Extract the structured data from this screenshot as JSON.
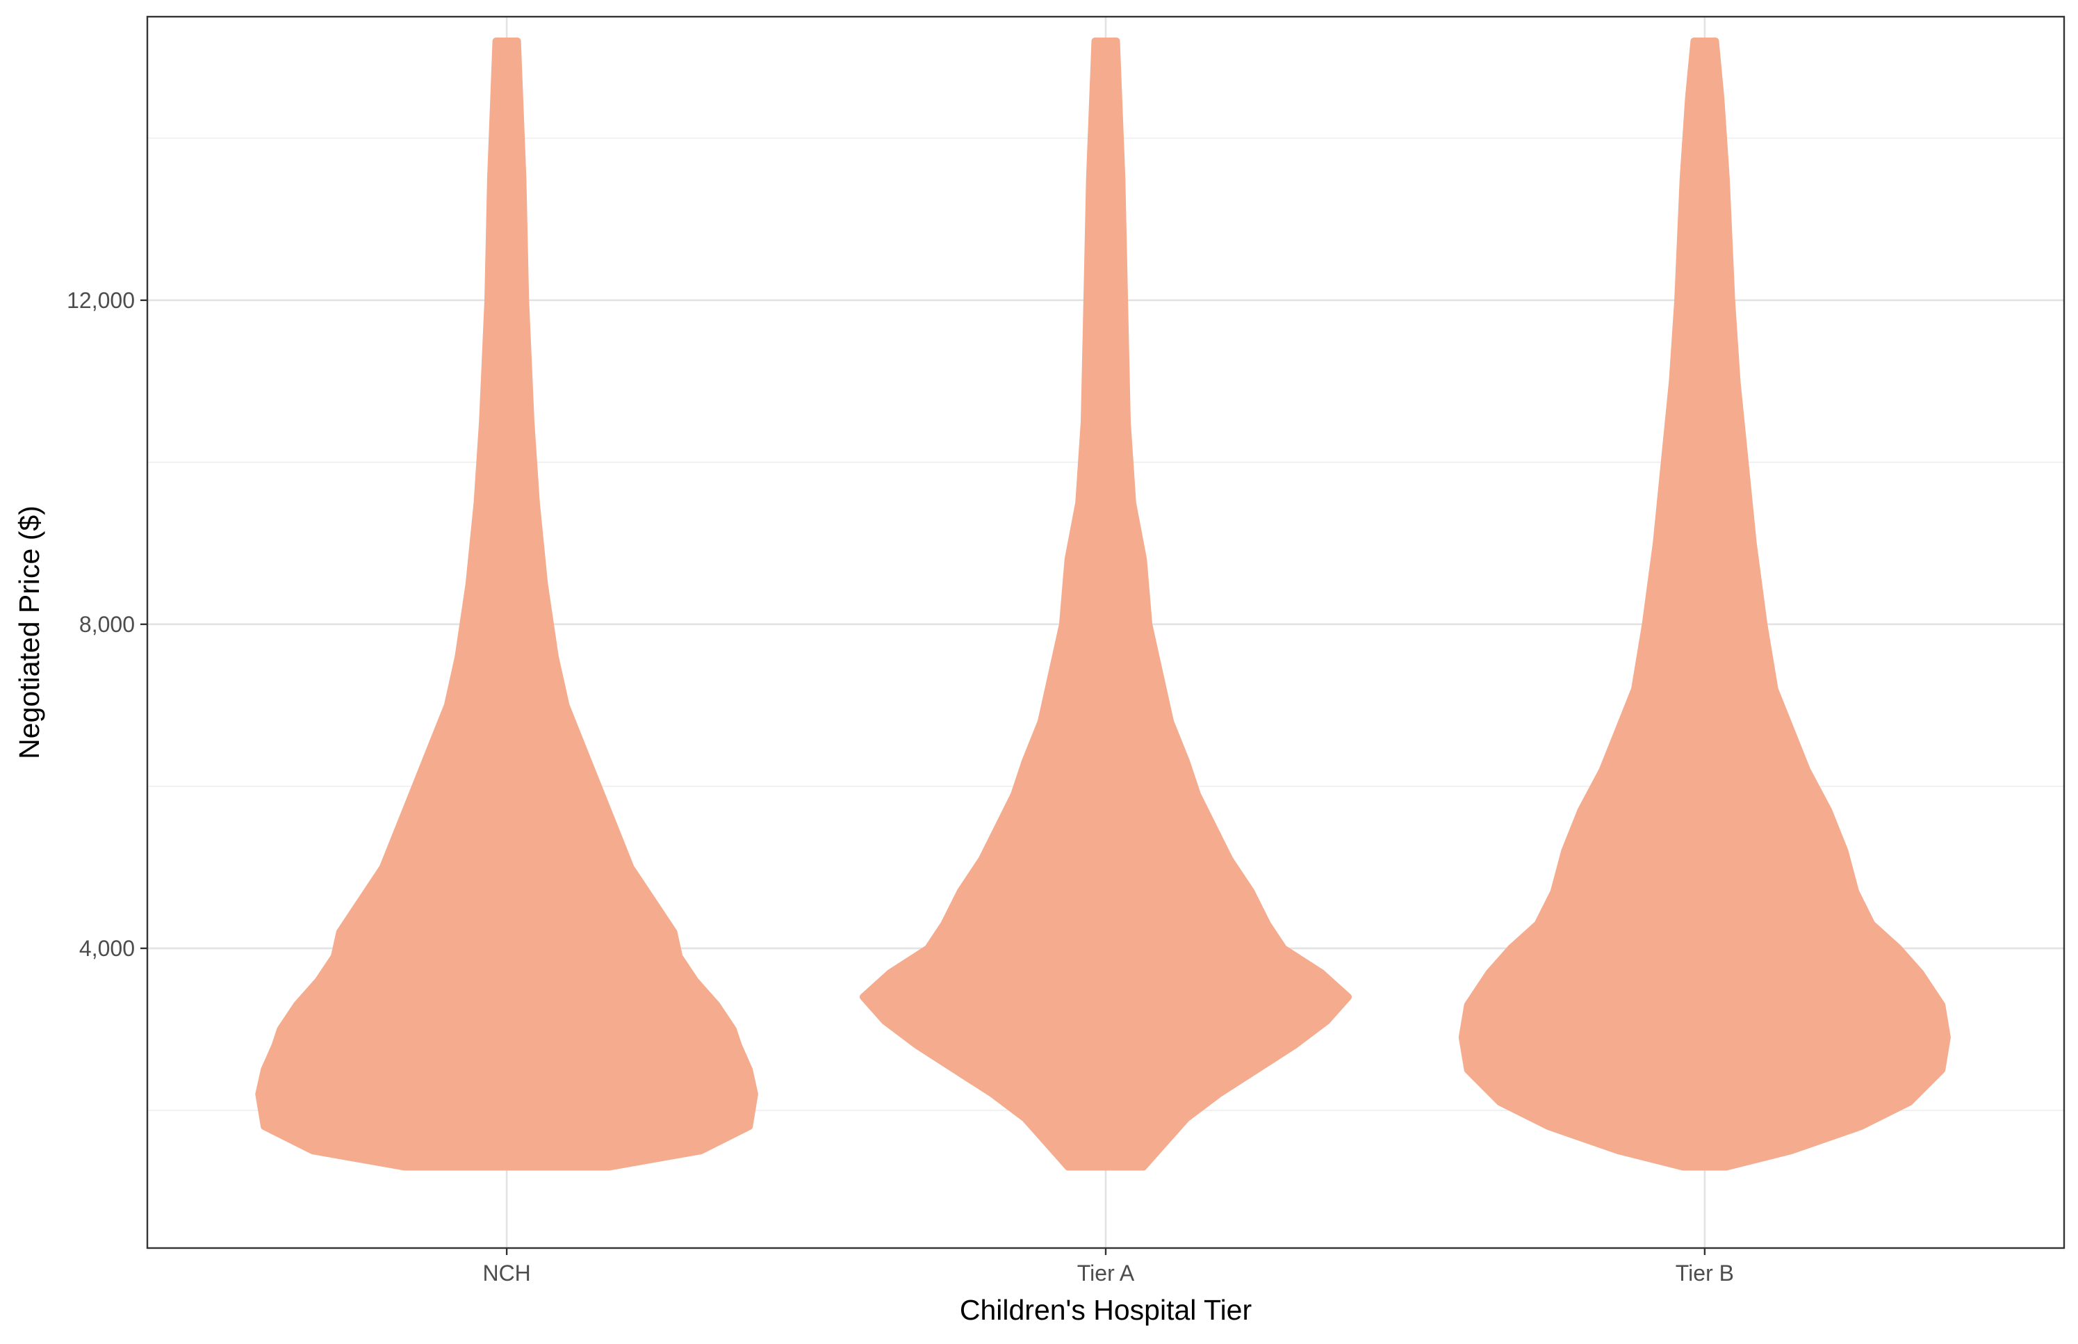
{
  "chart_data": {
    "type": "violin",
    "xlabel": "Children's Hospital Tier",
    "ylabel": "Negotiated Price ($)",
    "title": "",
    "categories": [
      "NCH",
      "Tier A",
      "Tier B"
    ],
    "y_ticks": [
      4000,
      8000,
      12000
    ],
    "y_tick_labels": [
      "4,000",
      "8,000",
      "12,000"
    ],
    "ylim": [
      300,
      15500
    ],
    "grid": true,
    "fill_color": "#F4AB8E",
    "violins": [
      {
        "category": "NCH",
        "min": 1300,
        "max": 15200,
        "profile": [
          [
            1300,
            38
          ],
          [
            1500,
            72
          ],
          [
            1800,
            90
          ],
          [
            2200,
            92
          ],
          [
            2500,
            90
          ],
          [
            2800,
            86
          ],
          [
            3000,
            84
          ],
          [
            3300,
            78
          ],
          [
            3600,
            70
          ],
          [
            3900,
            64
          ],
          [
            4200,
            62
          ],
          [
            4600,
            54
          ],
          [
            5000,
            46
          ],
          [
            5500,
            40
          ],
          [
            6000,
            34
          ],
          [
            6500,
            28
          ],
          [
            7000,
            22
          ],
          [
            7600,
            18
          ],
          [
            8500,
            14
          ],
          [
            9500,
            11
          ],
          [
            10500,
            9
          ],
          [
            12000,
            7
          ],
          [
            13500,
            6
          ],
          [
            15200,
            4
          ]
        ]
      },
      {
        "category": "Tier A",
        "min": 1300,
        "max": 15200,
        "profile": [
          [
            1300,
            14
          ],
          [
            1600,
            22
          ],
          [
            1900,
            30
          ],
          [
            2200,
            42
          ],
          [
            2500,
            56
          ],
          [
            2800,
            70
          ],
          [
            3100,
            82
          ],
          [
            3400,
            90
          ],
          [
            3700,
            80
          ],
          [
            4000,
            66
          ],
          [
            4300,
            60
          ],
          [
            4700,
            54
          ],
          [
            5100,
            46
          ],
          [
            5500,
            40
          ],
          [
            5900,
            34
          ],
          [
            6300,
            30
          ],
          [
            6800,
            24
          ],
          [
            7400,
            20
          ],
          [
            8000,
            16
          ],
          [
            8800,
            14
          ],
          [
            9500,
            10
          ],
          [
            10500,
            8
          ],
          [
            12000,
            7
          ],
          [
            13500,
            6
          ],
          [
            15200,
            4
          ]
        ]
      },
      {
        "category": "Tier B",
        "min": 1300,
        "max": 15200,
        "profile": [
          [
            1300,
            8
          ],
          [
            1500,
            32
          ],
          [
            1800,
            58
          ],
          [
            2100,
            76
          ],
          [
            2500,
            88
          ],
          [
            2900,
            90
          ],
          [
            3300,
            88
          ],
          [
            3700,
            80
          ],
          [
            4000,
            72
          ],
          [
            4300,
            62
          ],
          [
            4700,
            56
          ],
          [
            5200,
            52
          ],
          [
            5700,
            46
          ],
          [
            6200,
            38
          ],
          [
            6700,
            32
          ],
          [
            7200,
            26
          ],
          [
            8000,
            22
          ],
          [
            9000,
            18
          ],
          [
            10000,
            15
          ],
          [
            11000,
            12
          ],
          [
            12000,
            10
          ],
          [
            13500,
            8
          ],
          [
            14500,
            6
          ],
          [
            15200,
            4
          ]
        ]
      }
    ]
  }
}
